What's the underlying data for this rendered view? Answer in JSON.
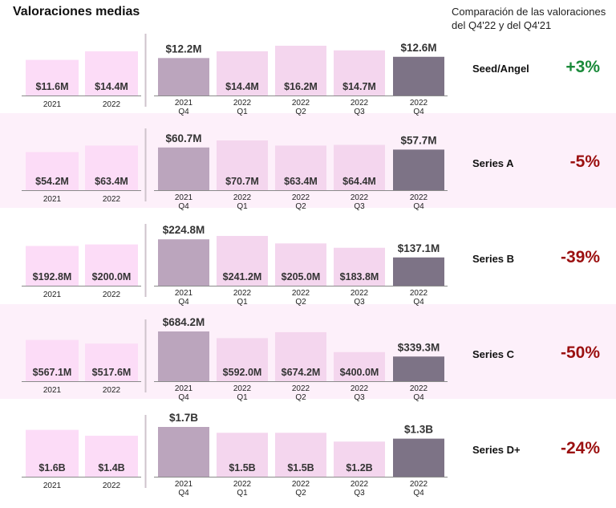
{
  "title": "Valoraciones medias",
  "comparison_title": "Comparación de las valoraciones del Q4'22 y del Q4'21",
  "colors": {
    "annual_bar": "#fcdcf7",
    "q4_2021_bar": "#bba5bd",
    "quarter_bar": "#f4d6ee",
    "q4_2022_bar": "#7d7386",
    "positive": "#1a8a3a",
    "negative": "#9b1010",
    "band_shade": "#fdf0fa"
  },
  "chart_data": [
    {
      "type": "bar",
      "stage": "Seed/Angel",
      "change_label": "+3%",
      "change_value": 3,
      "annual": {
        "categories": [
          "2021",
          "2022"
        ],
        "values": [
          11.6,
          14.4
        ],
        "labels": [
          "$11.6M",
          "$14.4M"
        ]
      },
      "quarterly": {
        "categories": [
          [
            "2021",
            "Q4"
          ],
          [
            "2022",
            "Q1"
          ],
          [
            "2022",
            "Q2"
          ],
          [
            "2022",
            "Q3"
          ],
          [
            "2022",
            "Q4"
          ]
        ],
        "values": [
          12.2,
          14.4,
          16.2,
          14.7,
          12.6
        ],
        "labels": [
          "$12.2M",
          "$14.4M",
          "$16.2M",
          "$14.7M",
          "$12.6M"
        ]
      }
    },
    {
      "type": "bar",
      "stage": "Series A",
      "change_label": "-5%",
      "change_value": -5,
      "annual": {
        "categories": [
          "2021",
          "2022"
        ],
        "values": [
          54.2,
          63.4
        ],
        "labels": [
          "$54.2M",
          "$63.4M"
        ]
      },
      "quarterly": {
        "categories": [
          [
            "2021",
            "Q4"
          ],
          [
            "2022",
            "Q1"
          ],
          [
            "2022",
            "Q2"
          ],
          [
            "2022",
            "Q3"
          ],
          [
            "2022",
            "Q4"
          ]
        ],
        "values": [
          60.7,
          70.7,
          63.4,
          64.4,
          57.7
        ],
        "labels": [
          "$60.7M",
          "$70.7M",
          "$63.4M",
          "$64.4M",
          "$57.7M"
        ]
      }
    },
    {
      "type": "bar",
      "stage": "Series B",
      "change_label": "-39%",
      "change_value": -39,
      "annual": {
        "categories": [
          "2021",
          "2022"
        ],
        "values": [
          192.8,
          200.0
        ],
        "labels": [
          "$192.8M",
          "$200.0M"
        ]
      },
      "quarterly": {
        "categories": [
          [
            "2021",
            "Q4"
          ],
          [
            "2022",
            "Q1"
          ],
          [
            "2022",
            "Q2"
          ],
          [
            "2022",
            "Q3"
          ],
          [
            "2022",
            "Q4"
          ]
        ],
        "values": [
          224.8,
          241.2,
          205.0,
          183.8,
          137.1
        ],
        "labels": [
          "$224.8M",
          "$241.2M",
          "$205.0M",
          "$183.8M",
          "$137.1M"
        ]
      }
    },
    {
      "type": "bar",
      "stage": "Series C",
      "change_label": "-50%",
      "change_value": -50,
      "annual": {
        "categories": [
          "2021",
          "2022"
        ],
        "values": [
          567.1,
          517.6
        ],
        "labels": [
          "$567.1M",
          "$517.6M"
        ]
      },
      "quarterly": {
        "categories": [
          [
            "2021",
            "Q4"
          ],
          [
            "2022",
            "Q1"
          ],
          [
            "2022",
            "Q2"
          ],
          [
            "2022",
            "Q3"
          ],
          [
            "2022",
            "Q4"
          ]
        ],
        "values": [
          684.2,
          592.0,
          674.2,
          400.0,
          339.3
        ],
        "labels": [
          "$684.2M",
          "$592.0M",
          "$674.2M",
          "$400.0M",
          "$339.3M"
        ]
      }
    },
    {
      "type": "bar",
      "stage": "Series D+",
      "change_label": "-24%",
      "change_value": -24,
      "annual": {
        "categories": [
          "2021",
          "2022"
        ],
        "values": [
          1.6,
          1.4
        ],
        "labels": [
          "$1.6B",
          "$1.4B"
        ]
      },
      "quarterly": {
        "categories": [
          [
            "2021",
            "Q4"
          ],
          [
            "2022",
            "Q1"
          ],
          [
            "2022",
            "Q2"
          ],
          [
            "2022",
            "Q3"
          ],
          [
            "2022",
            "Q4"
          ]
        ],
        "values": [
          1.7,
          1.5,
          1.5,
          1.2,
          1.3
        ],
        "labels": [
          "$1.7B",
          "$1.5B",
          "$1.5B",
          "$1.2B",
          "$1.3B"
        ]
      }
    }
  ]
}
